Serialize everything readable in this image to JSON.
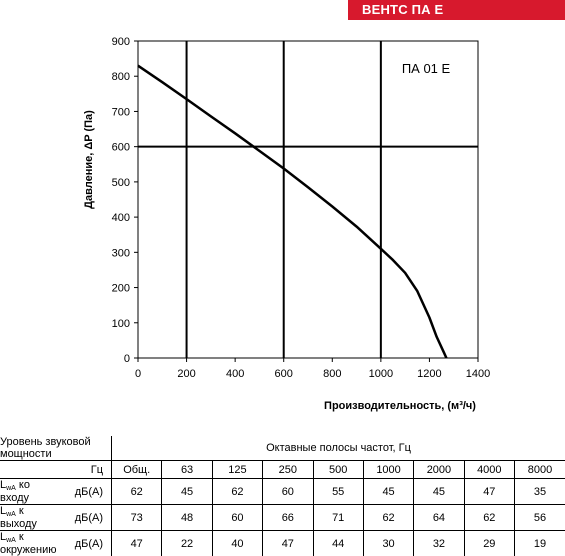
{
  "header": {
    "brand": "ВЕНТС ПА Е"
  },
  "chart_data": {
    "type": "line",
    "model_label": "ПА 01 Е",
    "xlabel": "Производительность, (м³/ч)",
    "ylabel": "Давление, ΔP (Па)",
    "xlim": [
      0,
      1400
    ],
    "ylim": [
      0,
      900
    ],
    "xticks": [
      "0",
      "200",
      "400",
      "600",
      "800",
      "1000",
      "1200",
      "1400"
    ],
    "yticks": [
      "0",
      "100",
      "200",
      "300",
      "400",
      "500",
      "600",
      "700",
      "800",
      "900"
    ],
    "grid_x": [
      200,
      600,
      1000
    ],
    "grid_y": [
      600
    ],
    "series": [
      {
        "color": "#000000",
        "x": [
          0,
          100,
          200,
          300,
          400,
          500,
          600,
          700,
          800,
          900,
          1000,
          1050,
          1100,
          1150,
          1200,
          1230,
          1260,
          1270
        ],
        "y": [
          830,
          783,
          735,
          686,
          638,
          588,
          538,
          485,
          430,
          373,
          310,
          278,
          242,
          190,
          115,
          60,
          15,
          0
        ]
      }
    ]
  },
  "noise_table": {
    "title": "Уровень звуковой мощности",
    "bands_title": "Октавные полосы частот, Гц",
    "unit_label": "Гц",
    "columns": [
      "Общ.",
      "63",
      "125",
      "250",
      "500",
      "1000",
      "2000",
      "4000",
      "8000"
    ],
    "rows": [
      {
        "label_main": "L",
        "label_sub": "wA",
        "label_rest": " ко входу",
        "unit": "дБ(A)",
        "values": [
          "62",
          "45",
          "62",
          "60",
          "55",
          "45",
          "45",
          "47",
          "35"
        ]
      },
      {
        "label_main": "L",
        "label_sub": "wA",
        "label_rest": " к выходу",
        "unit": "дБ(A)",
        "values": [
          "73",
          "48",
          "60",
          "66",
          "71",
          "62",
          "64",
          "62",
          "56"
        ]
      },
      {
        "label_main": "L",
        "label_sub": "wA",
        "label_rest": " к окружению",
        "unit": "дБ(A)",
        "values": [
          "47",
          "22",
          "40",
          "47",
          "44",
          "30",
          "32",
          "29",
          "19"
        ]
      }
    ]
  }
}
